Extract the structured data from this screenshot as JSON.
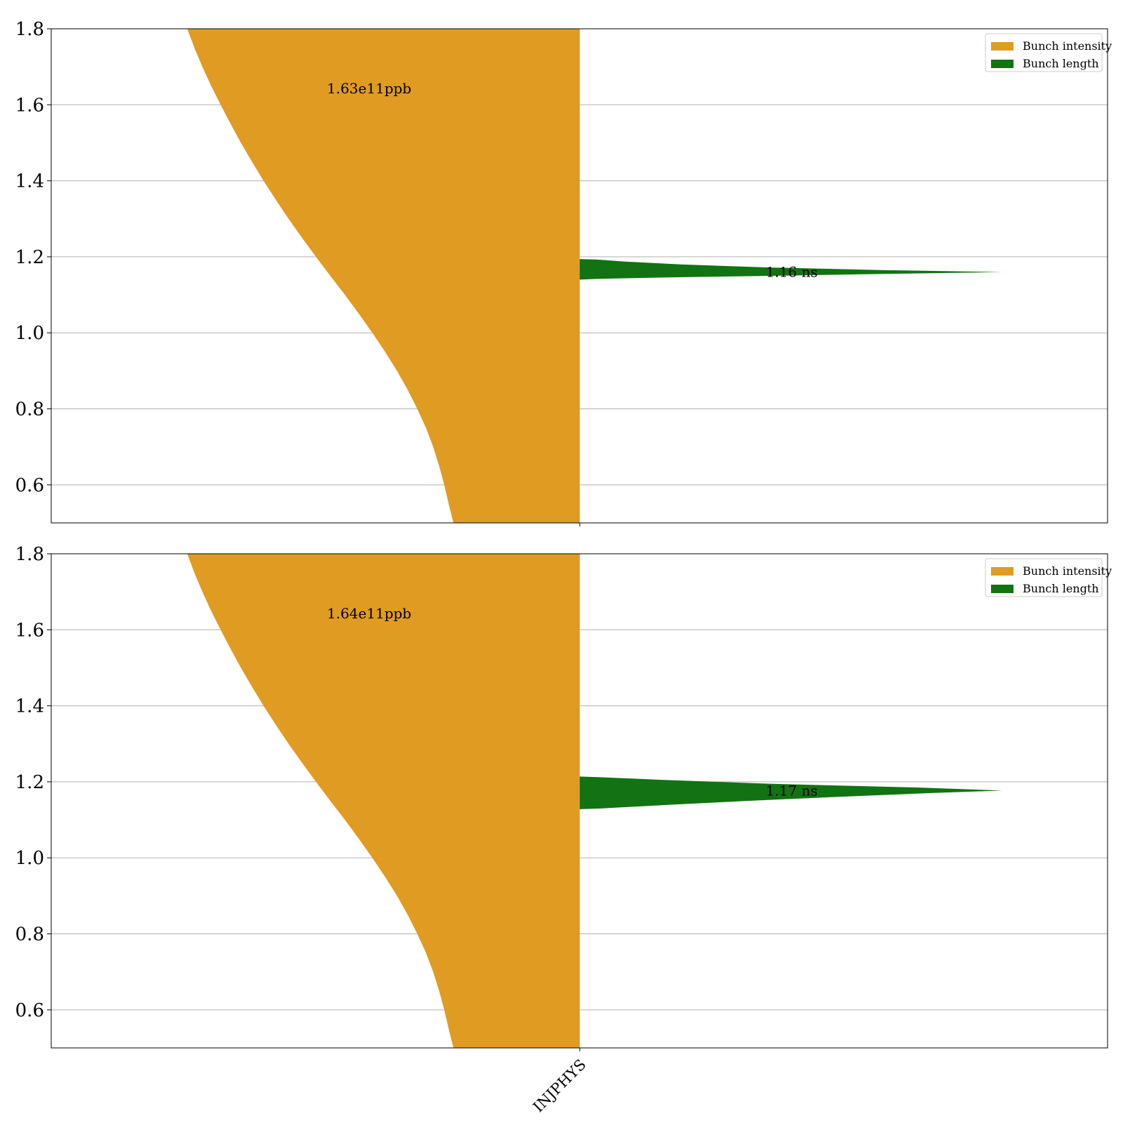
{
  "chart_data": [
    {
      "type": "violin",
      "categories": [
        "INJPHYS"
      ],
      "xlabel": "",
      "ylabel": "",
      "ylim": [
        0.5,
        1.8
      ],
      "yticks": [
        "0.6",
        "0.8",
        "1.0",
        "1.2",
        "1.4",
        "1.6",
        "1.8"
      ],
      "grid": "y",
      "legend_position": "upper right",
      "series": [
        {
          "name": "Bunch intensity",
          "side": "left",
          "color": "#df9b22",
          "annotation": "1.63e11ppb",
          "profile": [
            [
              0.5,
              0.318
            ],
            [
              0.55,
              0.33
            ],
            [
              0.6,
              0.341
            ],
            [
              0.65,
              0.354
            ],
            [
              0.7,
              0.369
            ],
            [
              0.75,
              0.387
            ],
            [
              0.8,
              0.409
            ],
            [
              0.85,
              0.433
            ],
            [
              0.9,
              0.46
            ],
            [
              0.95,
              0.49
            ],
            [
              1.0,
              0.522
            ],
            [
              1.05,
              0.556
            ],
            [
              1.1,
              0.591
            ],
            [
              1.15,
              0.628
            ],
            [
              1.2,
              0.664
            ],
            [
              1.25,
              0.699
            ],
            [
              1.3,
              0.733
            ],
            [
              1.35,
              0.765
            ],
            [
              1.4,
              0.796
            ],
            [
              1.45,
              0.825
            ],
            [
              1.5,
              0.853
            ],
            [
              1.55,
              0.879
            ],
            [
              1.6,
              0.904
            ],
            [
              1.65,
              0.928
            ],
            [
              1.7,
              0.95
            ],
            [
              1.75,
              0.97
            ],
            [
              1.8,
              0.988
            ]
          ]
        },
        {
          "name": "Bunch length",
          "side": "right",
          "color": "#127312",
          "annotation": "1.16 ns",
          "profile": [
            [
              1.14,
              0.0
            ],
            [
              1.142,
              0.04
            ],
            [
              1.146,
              0.22
            ],
            [
              1.15,
              0.45
            ],
            [
              1.155,
              0.72
            ],
            [
              1.16,
              1.0
            ],
            [
              1.165,
              0.72
            ],
            [
              1.172,
              0.45
            ],
            [
              1.18,
              0.24
            ],
            [
              1.188,
              0.1
            ],
            [
              1.193,
              0.04
            ],
            [
              1.194,
              0.0
            ]
          ]
        }
      ]
    },
    {
      "type": "violin",
      "categories": [
        "INJPHYS"
      ],
      "xlabel": "",
      "ylabel": "",
      "ylim": [
        0.5,
        1.8
      ],
      "yticks": [
        "0.6",
        "0.8",
        "1.0",
        "1.2",
        "1.4",
        "1.6",
        "1.8"
      ],
      "grid": "y",
      "legend_position": "upper right",
      "series": [
        {
          "name": "Bunch intensity",
          "side": "left",
          "color": "#df9b22",
          "annotation": "1.64e11ppb",
          "profile": [
            [
              0.5,
              0.318
            ],
            [
              0.55,
              0.33
            ],
            [
              0.6,
              0.341
            ],
            [
              0.65,
              0.354
            ],
            [
              0.7,
              0.369
            ],
            [
              0.75,
              0.387
            ],
            [
              0.8,
              0.409
            ],
            [
              0.85,
              0.433
            ],
            [
              0.9,
              0.46
            ],
            [
              0.95,
              0.49
            ],
            [
              1.0,
              0.522
            ],
            [
              1.05,
              0.556
            ],
            [
              1.1,
              0.591
            ],
            [
              1.15,
              0.628
            ],
            [
              1.2,
              0.664
            ],
            [
              1.25,
              0.699
            ],
            [
              1.3,
              0.733
            ],
            [
              1.35,
              0.765
            ],
            [
              1.4,
              0.796
            ],
            [
              1.45,
              0.825
            ],
            [
              1.5,
              0.853
            ],
            [
              1.55,
              0.879
            ],
            [
              1.6,
              0.904
            ],
            [
              1.65,
              0.928
            ],
            [
              1.7,
              0.95
            ],
            [
              1.75,
              0.97
            ],
            [
              1.8,
              0.988
            ]
          ]
        },
        {
          "name": "Bunch length",
          "side": "right",
          "color": "#127312",
          "annotation": "1.17 ns",
          "profile": [
            [
              1.128,
              0.0
            ],
            [
              1.13,
              0.05
            ],
            [
              1.14,
              0.22
            ],
            [
              1.15,
              0.4
            ],
            [
              1.16,
              0.6
            ],
            [
              1.17,
              0.82
            ],
            [
              1.177,
              1.0
            ],
            [
              1.185,
              0.8
            ],
            [
              1.195,
              0.45
            ],
            [
              1.205,
              0.2
            ],
            [
              1.212,
              0.05
            ],
            [
              1.214,
              0.0
            ]
          ]
        }
      ]
    }
  ]
}
